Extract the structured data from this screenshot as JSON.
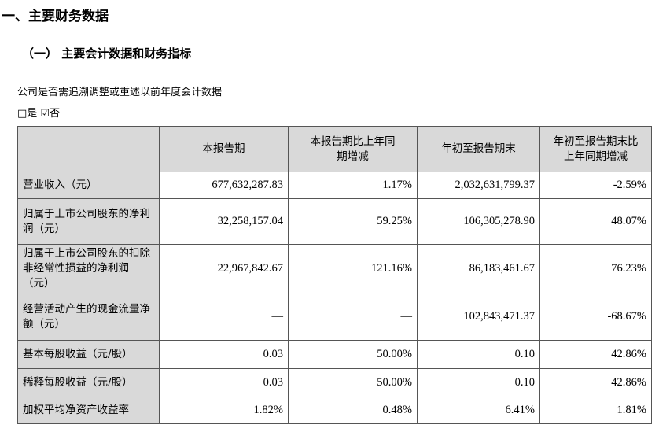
{
  "header": {
    "title": "一、主要财务数据",
    "subtitle": "（一） 主要会计数据和财务指标"
  },
  "notes": [
    "公司是否需追溯调整或重述以前年度会计数据",
    "□是 ☑否"
  ],
  "table": {
    "columns": [
      "",
      "本报告期",
      "本报告期比上年同期增减",
      "年初至报告期末",
      "年初至报告期末比上年同期增减"
    ],
    "rows": [
      [
        "营业收入（元）",
        "677,632,287.83",
        "1.17%",
        "2,032,631,799.37",
        "-2.59%"
      ],
      [
        "归属于上市公司股东的净利润（元）",
        "32,258,157.04",
        "59.25%",
        "106,305,278.90",
        "48.07%"
      ],
      [
        "归属于上市公司股东的扣除非经常性损益的净利润（元）",
        "22,967,842.67",
        "121.16%",
        "86,183,461.67",
        "76.23%"
      ],
      [
        "经营活动产生的现金流量净额（元）",
        "—",
        "—",
        "102,843,471.37",
        "-68.67%"
      ],
      [
        "基本每股收益（元/股）",
        "0.03",
        "50.00%",
        "0.10",
        "42.86%"
      ],
      [
        "稀释每股收益（元/股）",
        "0.03",
        "50.00%",
        "0.10",
        "42.86%"
      ],
      [
        "加权平均净资产收益率",
        "1.82%",
        "0.48%",
        "6.41%",
        "1.81%"
      ]
    ]
  }
}
